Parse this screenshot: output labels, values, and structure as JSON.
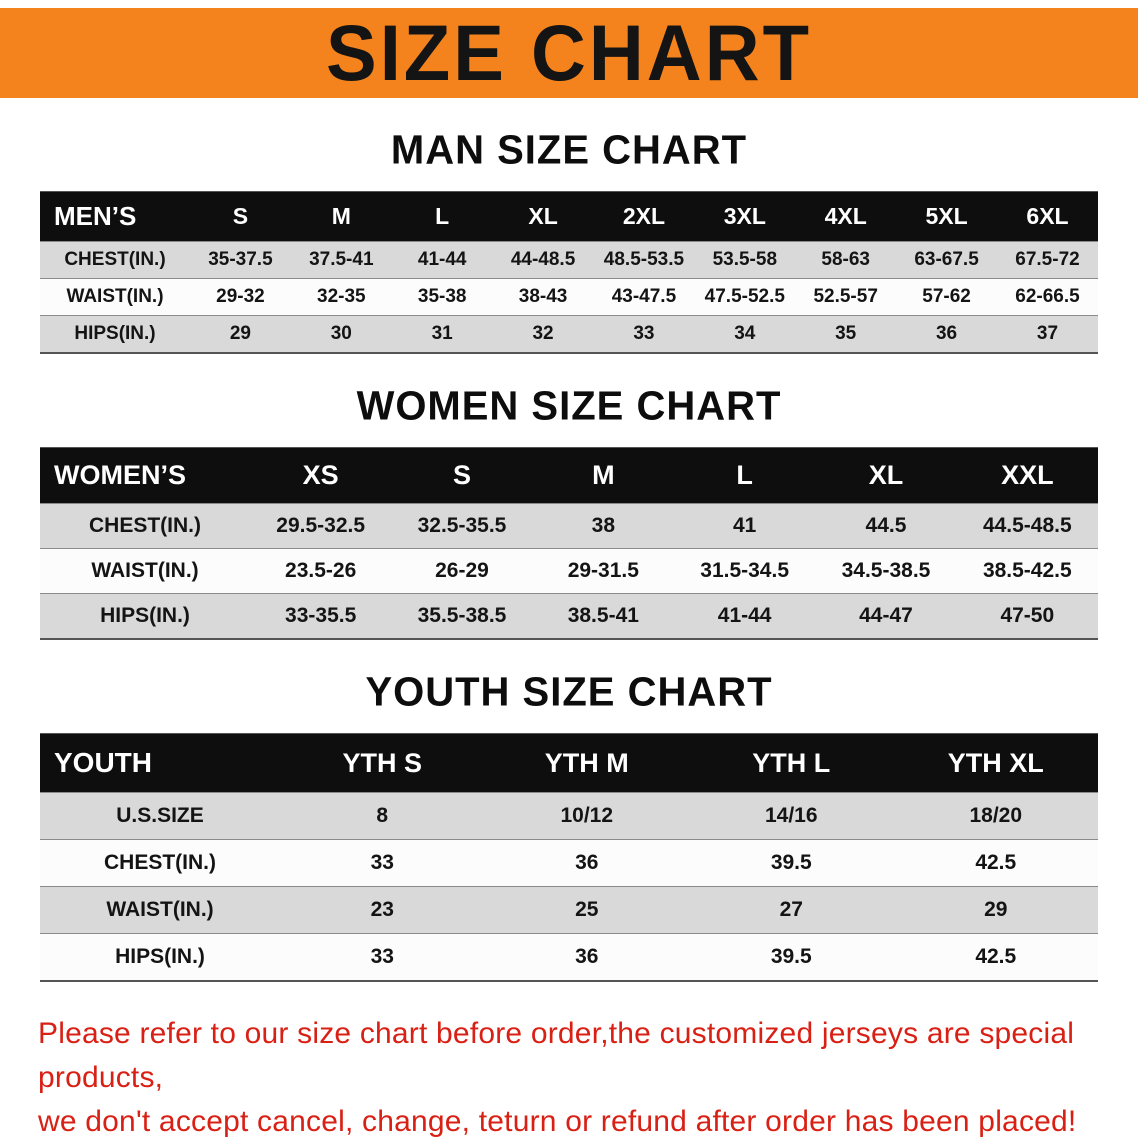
{
  "banner": {
    "title": "SIZE CHART"
  },
  "colors": {
    "banner_orange": "#f5831d",
    "disclaimer_red": "#d92015",
    "table_header_black": "#0e0e0e",
    "row_gray": "#d9d9d9"
  },
  "sections": [
    {
      "id": "men",
      "heading": "MAN SIZE CHART",
      "table": {
        "header": [
          "MEN’S",
          "S",
          "M",
          "L",
          "XL",
          "2XL",
          "3XL",
          "4XL",
          "5XL",
          "6XL"
        ],
        "rows": [
          [
            "CHEST(IN.)",
            "35-37.5",
            "37.5-41",
            "41-44",
            "44-48.5",
            "48.5-53.5",
            "53.5-58",
            "58-63",
            "63-67.5",
            "67.5-72"
          ],
          [
            "WAIST(IN.)",
            "29-32",
            "32-35",
            "35-38",
            "38-43",
            "43-47.5",
            "47.5-52.5",
            "52.5-57",
            "57-62",
            "62-66.5"
          ],
          [
            "HIPS(IN.)",
            "29",
            "30",
            "31",
            "32",
            "33",
            "34",
            "35",
            "36",
            "37"
          ]
        ]
      }
    },
    {
      "id": "women",
      "heading": "WOMEN SIZE CHART",
      "table": {
        "header": [
          "WOMEN’S",
          "XS",
          "S",
          "M",
          "L",
          "XL",
          "XXL"
        ],
        "rows": [
          [
            "CHEST(IN.)",
            "29.5-32.5",
            "32.5-35.5",
            "38",
            "41",
            "44.5",
            "44.5-48.5"
          ],
          [
            "WAIST(IN.)",
            "23.5-26",
            "26-29",
            "29-31.5",
            "31.5-34.5",
            "34.5-38.5",
            "38.5-42.5"
          ],
          [
            "HIPS(IN.)",
            "33-35.5",
            "35.5-38.5",
            "38.5-41",
            "41-44",
            "44-47",
            "47-50"
          ]
        ]
      }
    },
    {
      "id": "youth",
      "heading": "YOUTH SIZE CHART",
      "table": {
        "header": [
          "YOUTH",
          "YTH S",
          "YTH M",
          "YTH L",
          "YTH XL"
        ],
        "rows": [
          [
            "U.S.SIZE",
            "8",
            "10/12",
            "14/16",
            "18/20"
          ],
          [
            "CHEST(IN.)",
            "33",
            "36",
            "39.5",
            "42.5"
          ],
          [
            "WAIST(IN.)",
            "23",
            "25",
            "27",
            "29"
          ],
          [
            "HIPS(IN.)",
            "33",
            "36",
            "39.5",
            "42.5"
          ]
        ]
      }
    }
  ],
  "disclaimer": {
    "line1": "Please refer to our size chart before order,the customized jerseys are special products,",
    "line2": "we don't accept cancel, change, teturn or refund after order has been placed!"
  }
}
